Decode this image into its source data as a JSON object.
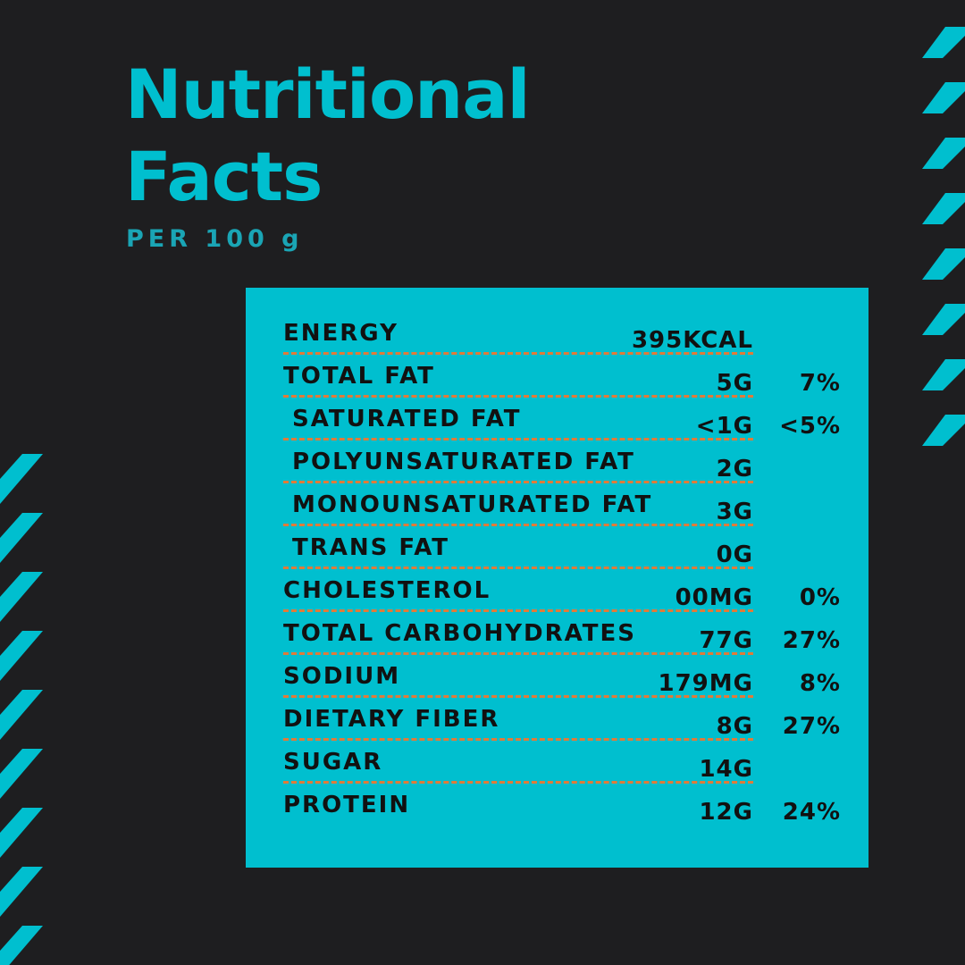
{
  "header": {
    "title_lines": [
      "Nutritional",
      "Facts"
    ],
    "subtitle": "PER 100 g"
  },
  "table": {
    "rows": [
      {
        "name": "ENERGY",
        "amount": "395KCAL"
      },
      {
        "name": "TOTAL FAT",
        "amount": "5G",
        "percent": "7%"
      },
      {
        "name": "SATURATED FAT",
        "amount": "<1G",
        "percent": "<5%",
        "indented": true
      },
      {
        "name": "POLYUNSATURATED FAT",
        "amount": "2G",
        "indented": true
      },
      {
        "name": "MONOUNSATURATED FAT",
        "amount": "3G",
        "indented": true
      },
      {
        "name": "TRANS FAT",
        "amount": "0G",
        "indented": true
      },
      {
        "name": "CHOLESTEROL",
        "amount": "00MG",
        "percent": "0%"
      },
      {
        "name": "TOTAL CARBOHYDRATES",
        "amount": "77G",
        "percent": "27%"
      },
      {
        "name": "SODIUM",
        "amount": "179MG",
        "percent": "8%"
      },
      {
        "name": "DIETARY FIBER",
        "amount": "8G",
        "percent": "27%"
      },
      {
        "name": "SUGAR",
        "amount": "14G"
      },
      {
        "name": "PROTEIN",
        "amount": "12G",
        "percent": "24%"
      }
    ]
  }
}
